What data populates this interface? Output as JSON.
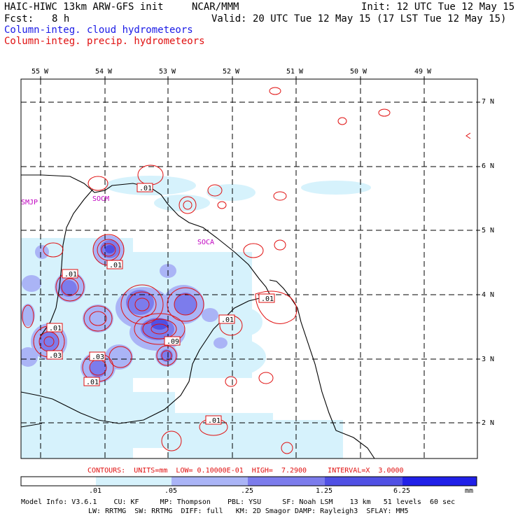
{
  "header": {
    "model": "HAIC-HIWC 13km ARW-GFS init",
    "org": "NCAR/MMM",
    "init": "Init: 12 UTC Tue 12 May 15",
    "fcst_label": "Fcst:",
    "fcst_value": "8 h",
    "valid": "Valid: 20 UTC Tue 12 May 15 (17 LST Tue 12 May 15)",
    "field_cloud": "Column-integ. cloud hydrometeors",
    "field_precip": "Column-integ. precip. hydrometeors"
  },
  "colors": {
    "cloud_title": "#1a1ae6",
    "precip_title": "#e01010",
    "sites": "#c000c0",
    "shade": [
      "#ffffff",
      "#d6f2fc",
      "#aab4f6",
      "#7c7cec",
      "#5050e4",
      "#2020e8"
    ]
  },
  "longitudes": [
    "55 W",
    "54 W",
    "53 W",
    "52 W",
    "51 W",
    "50 W",
    "49 W"
  ],
  "latitudes": [
    "7 N",
    "6 N",
    "5 N",
    "4 N",
    "3 N",
    "2 N"
  ],
  "sites": [
    "SMJP",
    "SOCM",
    "SOCA"
  ],
  "contour_labels": [
    ".01",
    ".01",
    ".01",
    ".01",
    ".01",
    ".01",
    ".03",
    ".03",
    ".01",
    ".09",
    ".01",
    ".01"
  ],
  "contour_info": "CONTOURS:  UNITS=mm  LOW= 0.10000E-01  HIGH=  7.2900     INTERVAL=X  3.0000",
  "colorbar": {
    "ticks": [
      ".01",
      ".05",
      ".25",
      "1.25",
      "6.25"
    ],
    "units": "mm"
  },
  "footer": {
    "line1": "Model Info: V3.6.1    CU: KF     MP: Thompson    PBL: YSU     SF: Noah LSM    13 km   51 levels  60 sec",
    "line2": "LW: RRTMG  SW: RRTMG  DIFF: full   KM: 2D Smagor DAMP: Rayleigh3  SFLAY: MM5"
  }
}
